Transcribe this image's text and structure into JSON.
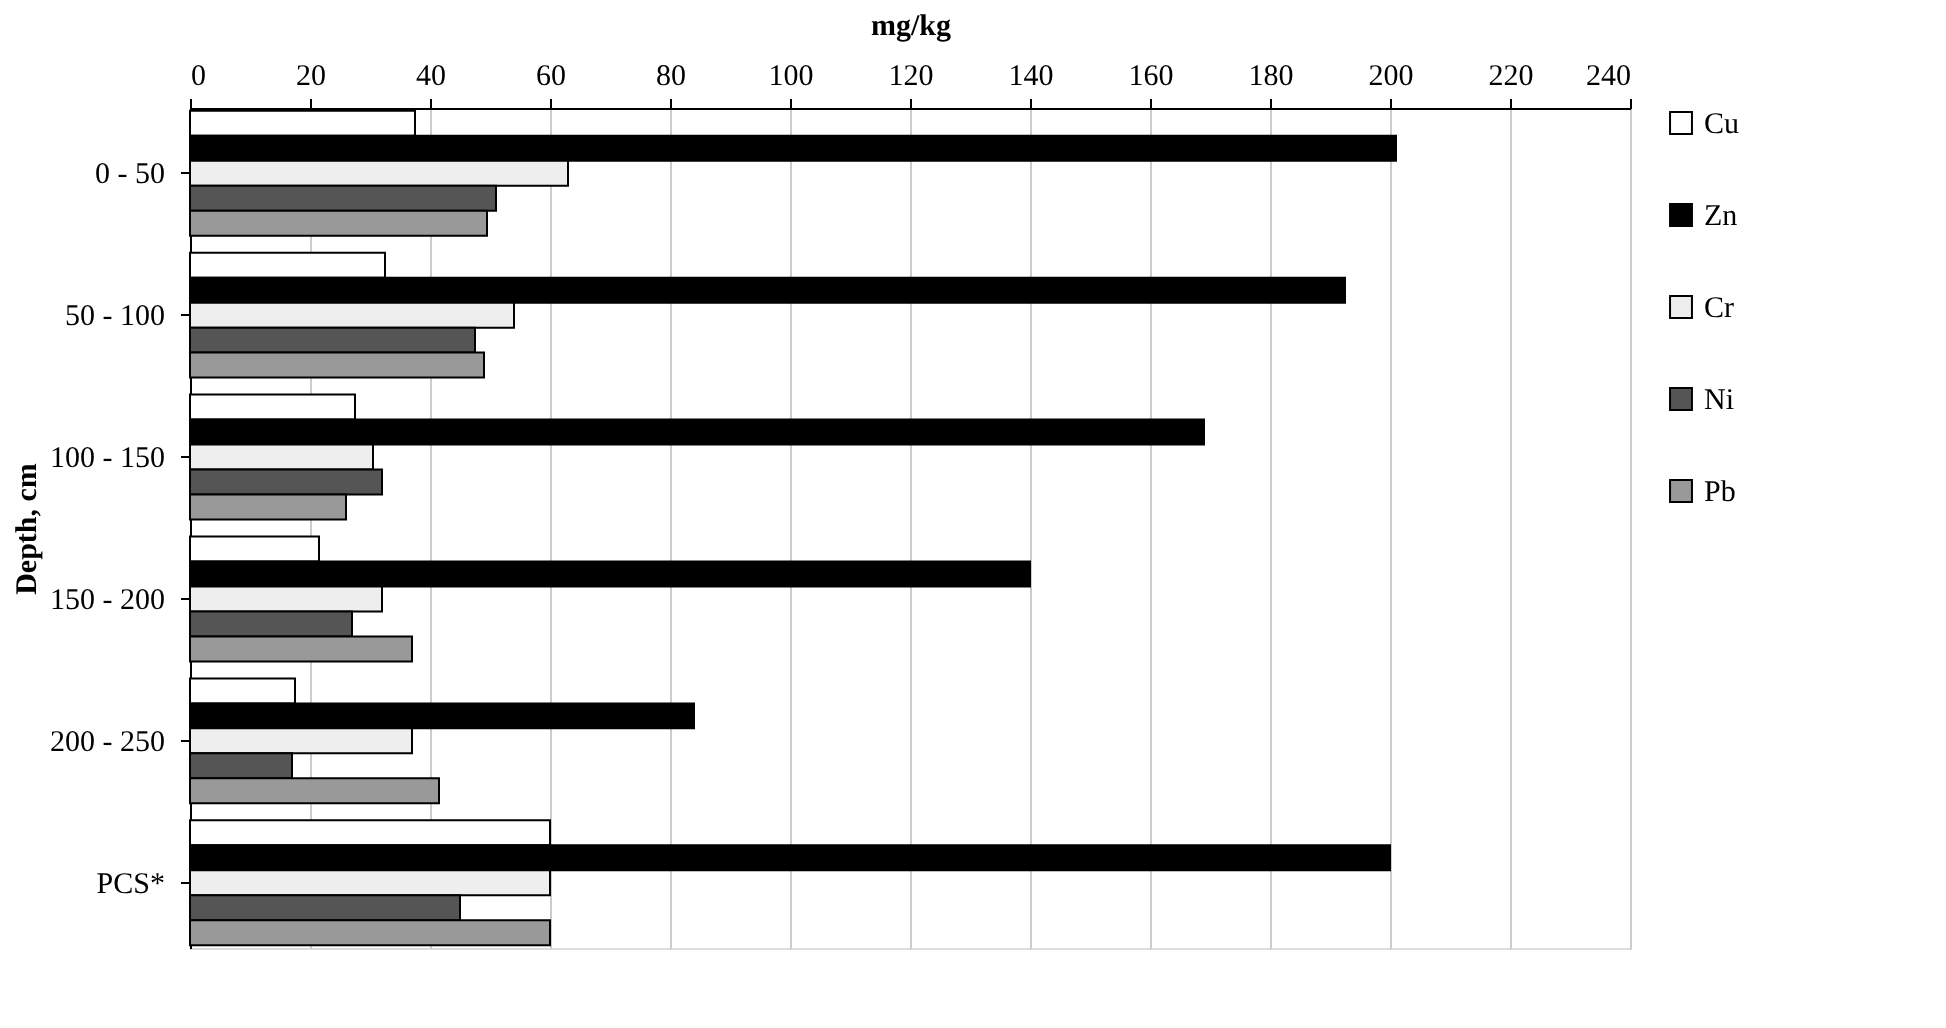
{
  "chart_data": {
    "type": "bar",
    "orientation": "horizontal",
    "xlabel": "mg/kg",
    "ylabel": "Depth, cm",
    "categories": [
      "0 - 50",
      "50 - 100",
      "100 - 150",
      "150 - 200",
      "200 - 250",
      "PCS*"
    ],
    "series": [
      {
        "name": "Cu",
        "color": "#ffffff",
        "values": [
          37.5,
          32.5,
          27.5,
          21.5,
          17.5,
          60
        ]
      },
      {
        "name": "Zn",
        "color": "#000000",
        "values": [
          201,
          192.5,
          169,
          140,
          84,
          200
        ]
      },
      {
        "name": "Cr",
        "color": "#eeeeee",
        "values": [
          63,
          54,
          30.5,
          32,
          37,
          60
        ]
      },
      {
        "name": "Ni",
        "color": "#555555",
        "values": [
          51,
          47.5,
          32,
          27,
          17,
          45
        ]
      },
      {
        "name": "Pb",
        "color": "#999999",
        "values": [
          49.5,
          49,
          26,
          37,
          41.5,
          60
        ]
      }
    ],
    "xlim": [
      0,
      240
    ],
    "xticks": [
      0,
      20,
      40,
      60,
      80,
      100,
      120,
      140,
      160,
      180,
      200,
      220,
      240
    ],
    "grid": "x",
    "legend": "right"
  }
}
